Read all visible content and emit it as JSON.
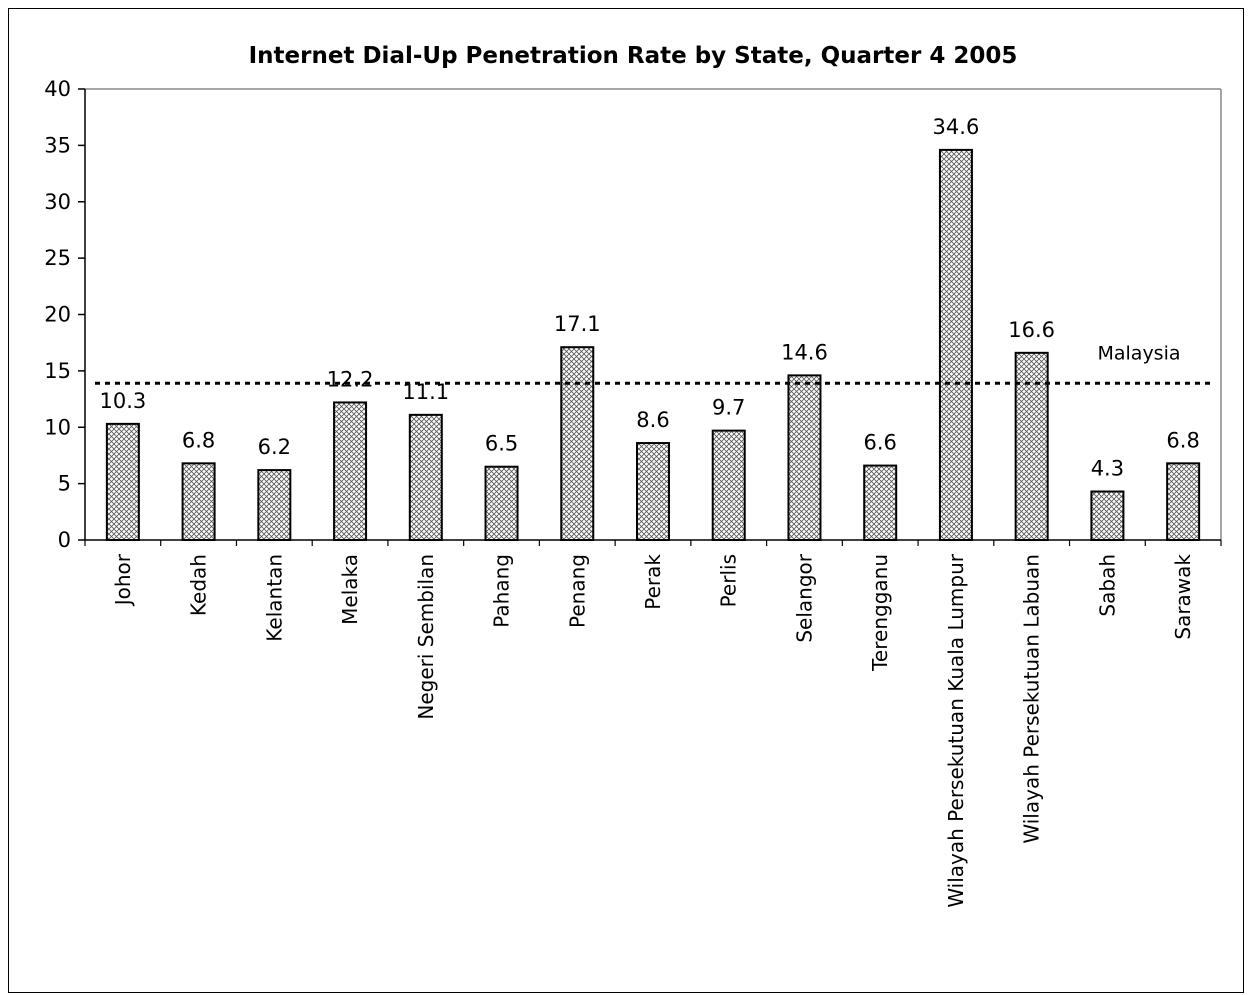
{
  "chart_data": {
    "type": "bar",
    "title": "Internet Dial-Up Penetration Rate by State, Quarter 4 2005",
    "xlabel": "",
    "ylabel": "",
    "ylim": [
      0,
      40
    ],
    "yticks": [
      0,
      5,
      10,
      15,
      20,
      25,
      30,
      35,
      40
    ],
    "categories": [
      "Johor",
      "Kedah",
      "Kelantan",
      "Melaka",
      "Negeri Sembilan",
      "Pahang",
      "Penang",
      "Perak",
      "Perlis",
      "Selangor",
      "Terengganu",
      "Wilayah Persekutuan Kuala Lumpur",
      "Wilayah Persekutuan Labuan",
      "Sabah",
      "Sarawak"
    ],
    "values": [
      10.3,
      6.8,
      6.2,
      12.2,
      11.1,
      6.5,
      17.1,
      8.6,
      9.7,
      14.6,
      6.6,
      34.6,
      16.6,
      4.3,
      6.8
    ],
    "data_labels": [
      "10.3",
      "6.8",
      "6.2",
      "12.2",
      "11.1",
      "6.5",
      "17.1",
      "8.6",
      "9.7",
      "14.6",
      "6.6",
      "34.6",
      "16.6",
      "4.3",
      "6.8"
    ],
    "reference_line": {
      "name": "Malaysia",
      "value": 13.9,
      "style": "dashed"
    },
    "bar_pattern": "crosshatch",
    "grid": false,
    "legend": "none"
  }
}
